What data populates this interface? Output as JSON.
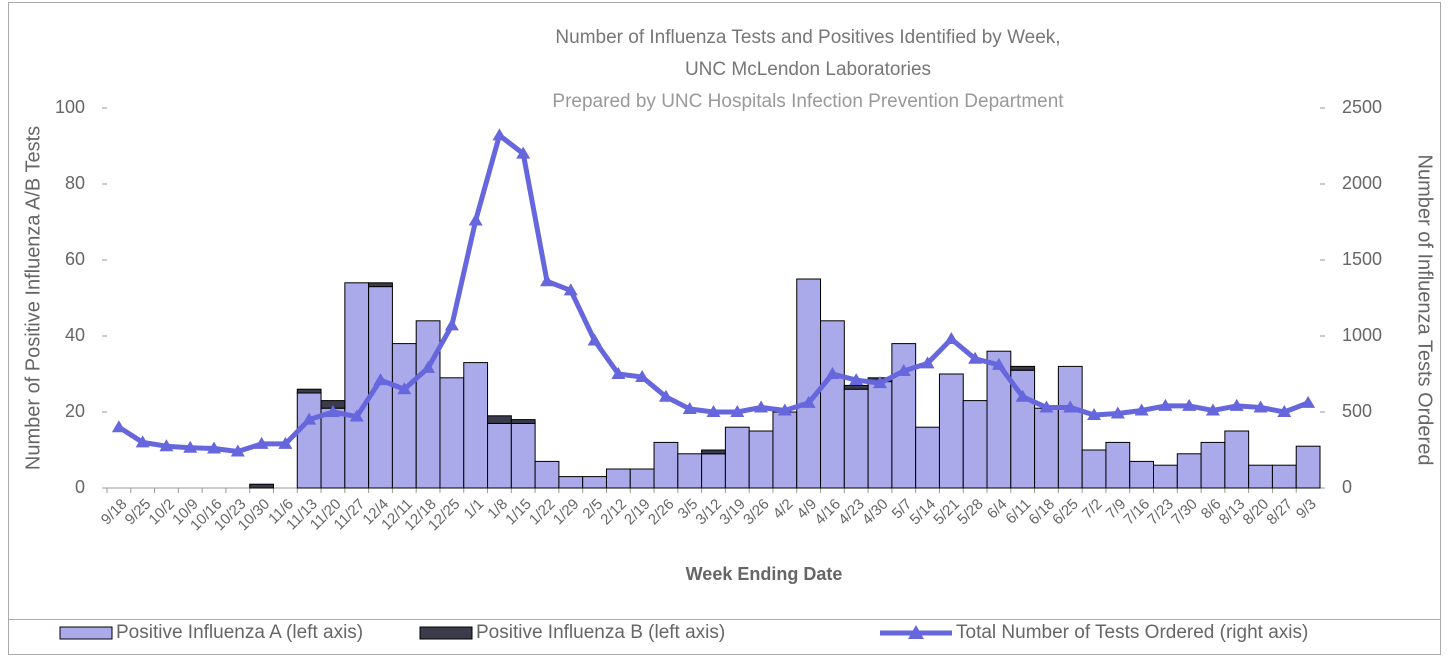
{
  "chart_data": {
    "type": "bar",
    "title": "Number of Influenza Tests and Positives Identified by Week,",
    "subtitle": "UNC McLendon Laboratories",
    "note": "Prepared by UNC Hospitals Infection Prevention Department",
    "x_label": "Week Ending Date",
    "y_label": "Number of Positive Influenza A/B Tests",
    "y2_label": "Number of Influenza Tests Ordered",
    "categories": [
      "9/18",
      "9/25",
      "10/2",
      "10/9",
      "10/16",
      "10/23",
      "10/30",
      "11/6",
      "11/13",
      "11/20",
      "11/27",
      "12/4",
      "12/11",
      "12/18",
      "12/25",
      "1/1",
      "1/8",
      "1/15",
      "1/22",
      "1/29",
      "2/5",
      "2/12",
      "2/19",
      "2/26",
      "3/5",
      "3/12",
      "3/19",
      "3/26",
      "4/2",
      "4/9",
      "4/16",
      "4/23",
      "4/30",
      "5/7",
      "5/14",
      "5/21",
      "5/28",
      "6/4",
      "6/11",
      "6/18",
      "6/25",
      "7/2",
      "7/9",
      "7/16",
      "7/23",
      "7/30",
      "8/6",
      "8/13",
      "8/20",
      "8/27",
      "9/3"
    ],
    "series": [
      {
        "name": "Positive Influenza A (left axis)",
        "type": "bar",
        "stack": true,
        "color": "#aaaaea",
        "values": [
          0,
          0,
          0,
          0,
          0,
          0,
          0,
          0,
          25,
          21,
          54,
          53,
          38,
          44,
          29,
          33,
          17,
          17,
          7,
          3,
          3,
          5,
          5,
          12,
          9,
          9,
          16,
          15,
          20,
          55,
          44,
          26,
          28,
          38,
          16,
          30,
          23,
          36,
          31,
          21,
          32,
          10,
          12,
          7,
          6,
          9,
          12,
          15,
          6,
          6,
          11
        ]
      },
      {
        "name": "Positive Influenza B (left axis)",
        "type": "bar",
        "stack": true,
        "color": "#3b3b4c",
        "values": [
          0,
          0,
          0,
          0,
          0,
          0,
          1,
          0,
          1,
          2,
          0,
          1,
          0,
          0,
          0,
          0,
          2,
          1,
          0,
          0,
          0,
          0,
          0,
          0,
          0,
          1,
          0,
          0,
          0,
          0,
          0,
          1,
          1,
          0,
          0,
          0,
          0,
          0,
          1,
          0,
          0,
          0,
          0,
          0,
          0,
          0,
          0,
          0,
          0,
          0,
          0
        ]
      },
      {
        "name": "Total Number of Tests Ordered (right axis)",
        "type": "line",
        "axis": "y2",
        "color": "#6666dd",
        "values": [
          400,
          300,
          275,
          265,
          260,
          240,
          290,
          290,
          450,
          500,
          470,
          710,
          650,
          790,
          1070,
          1760,
          2320,
          2200,
          1360,
          1300,
          970,
          750,
          730,
          600,
          520,
          500,
          500,
          530,
          510,
          560,
          750,
          710,
          690,
          770,
          820,
          980,
          850,
          810,
          600,
          530,
          530,
          480,
          490,
          510,
          540,
          540,
          510,
          540,
          530,
          500,
          560
        ]
      }
    ],
    "ylim": [
      0,
      100
    ],
    "yticks": [
      0,
      20,
      40,
      60,
      80,
      100
    ],
    "y2lim": [
      0,
      2500
    ],
    "y2ticks": [
      0,
      500,
      1000,
      1500,
      2000,
      2500
    ],
    "legend": "bottom"
  }
}
